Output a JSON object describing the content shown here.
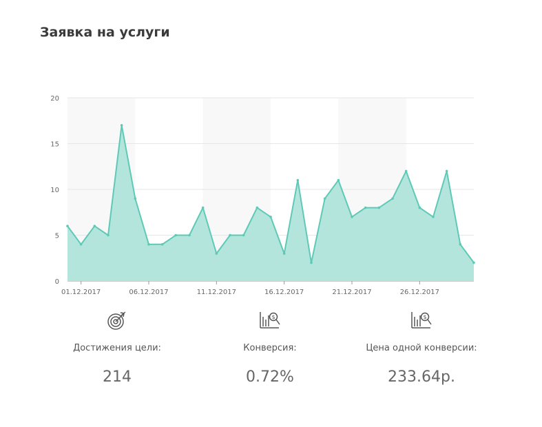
{
  "page": {
    "title": "Заявка на услуги"
  },
  "colors": {
    "accent": "#5dc9b6",
    "fill": "#b3e5dc",
    "band": "#f8f8f8",
    "grid": "#e6e6e6"
  },
  "chart_data": {
    "type": "area",
    "title": "Заявка на услуги",
    "x": [
      "30.11.2017",
      "01.12.2017",
      "02.12.2017",
      "03.12.2017",
      "04.12.2017",
      "05.12.2017",
      "06.12.2017",
      "07.12.2017",
      "08.12.2017",
      "09.12.2017",
      "10.12.2017",
      "11.12.2017",
      "12.12.2017",
      "13.12.2017",
      "14.12.2017",
      "15.12.2017",
      "16.12.2017",
      "17.12.2017",
      "18.12.2017",
      "19.12.2017",
      "20.12.2017",
      "21.12.2017",
      "22.12.2017",
      "23.12.2017",
      "24.12.2017",
      "25.12.2017",
      "26.12.2017",
      "27.12.2017",
      "28.12.2017",
      "29.12.2017",
      "30.12.2017"
    ],
    "series": [
      {
        "values": [
          6,
          4,
          6,
          5,
          17,
          9,
          4,
          4,
          5,
          5,
          8,
          3,
          5,
          5,
          8,
          7,
          3,
          11,
          2,
          9,
          11,
          7,
          8,
          8,
          9,
          12,
          8,
          7,
          12,
          4,
          2
        ]
      }
    ],
    "ylim": [
      0,
      20
    ],
    "yticks": [
      0,
      5,
      10,
      15,
      20
    ],
    "xtick_labels": [
      "01.12.2017",
      "06.12.2017",
      "11.12.2017",
      "16.12.2017",
      "21.12.2017",
      "26.12.2017"
    ],
    "grid": true
  },
  "stats": [
    {
      "icon": "target-icon",
      "label": "Достижения цели:",
      "value": "214"
    },
    {
      "icon": "chart-dollar-icon",
      "label": "Конверсия:",
      "value": "0.72%"
    },
    {
      "icon": "chart-dollar-icon",
      "label": "Цена одной конверсии:",
      "value": "233.64р."
    }
  ]
}
